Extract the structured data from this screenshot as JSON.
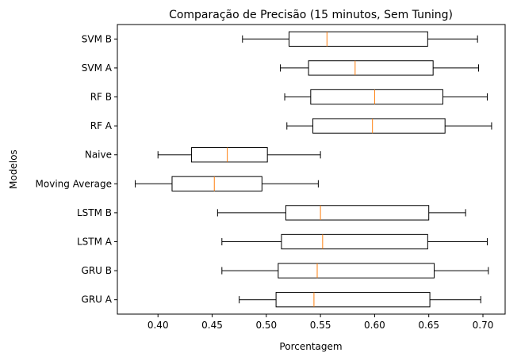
{
  "chart_data": {
    "type": "boxplot",
    "title": "Comparação de Precisão (15 minutos, Sem Tuning)",
    "xlabel": "Porcentagem",
    "ylabel": "Modelos",
    "xlim": [
      0.3625,
      0.7205
    ],
    "xticks": [
      "0.40",
      "0.45",
      "0.50",
      "0.55",
      "0.60",
      "0.65",
      "0.70"
    ],
    "orientation": "horizontal",
    "grid": false,
    "median_color": "#ff7f0e",
    "box_color": "#000000",
    "categories": [
      "SVM B",
      "SVM A",
      "RF B",
      "RF A",
      "Naive",
      "Moving Average",
      "LSTM B",
      "LSTM A",
      "GRU B",
      "GRU A"
    ],
    "series": [
      {
        "category": "SVM B",
        "whisker_low": 0.478,
        "q1": 0.521,
        "median": 0.556,
        "q3": 0.649,
        "whisker_high": 0.695
      },
      {
        "category": "SVM A",
        "whisker_low": 0.513,
        "q1": 0.539,
        "median": 0.582,
        "q3": 0.654,
        "whisker_high": 0.696
      },
      {
        "category": "RF B",
        "whisker_low": 0.517,
        "q1": 0.541,
        "median": 0.6,
        "q3": 0.663,
        "whisker_high": 0.704
      },
      {
        "category": "RF A",
        "whisker_low": 0.519,
        "q1": 0.543,
        "median": 0.598,
        "q3": 0.665,
        "whisker_high": 0.708
      },
      {
        "category": "Naive",
        "whisker_low": 0.4,
        "q1": 0.431,
        "median": 0.464,
        "q3": 0.501,
        "whisker_high": 0.55
      },
      {
        "category": "Moving Average",
        "whisker_low": 0.379,
        "q1": 0.413,
        "median": 0.452,
        "q3": 0.496,
        "whisker_high": 0.548
      },
      {
        "category": "LSTM B",
        "whisker_low": 0.455,
        "q1": 0.518,
        "median": 0.55,
        "q3": 0.65,
        "whisker_high": 0.684
      },
      {
        "category": "LSTM A",
        "whisker_low": 0.459,
        "q1": 0.514,
        "median": 0.552,
        "q3": 0.649,
        "whisker_high": 0.704
      },
      {
        "category": "GRU B",
        "whisker_low": 0.459,
        "q1": 0.511,
        "median": 0.547,
        "q3": 0.655,
        "whisker_high": 0.705
      },
      {
        "category": "GRU A",
        "whisker_low": 0.475,
        "q1": 0.509,
        "median": 0.544,
        "q3": 0.651,
        "whisker_high": 0.698
      }
    ]
  }
}
